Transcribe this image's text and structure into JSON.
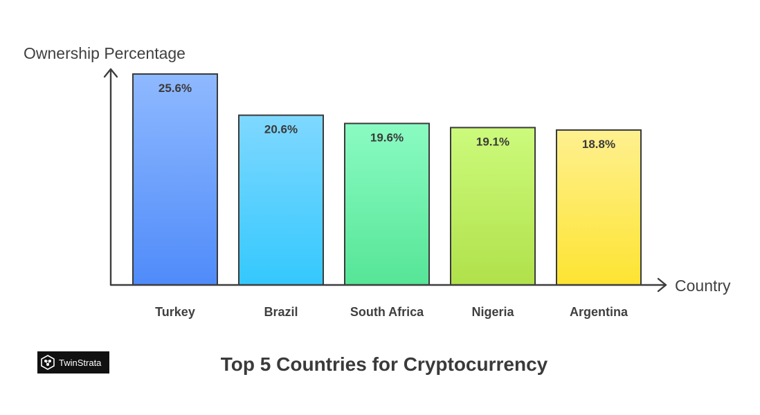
{
  "brand": {
    "name": "TwinStrata",
    "logo_icon": "twinstrata-logo-icon"
  },
  "chart_data": {
    "type": "bar",
    "title": "Top 5 Countries for Cryptocurrency",
    "xlabel": "Country",
    "ylabel": "Ownership Percentage",
    "categories": [
      "Turkey",
      "Brazil",
      "South Africa",
      "Nigeria",
      "Argentina"
    ],
    "values": [
      25.6,
      20.6,
      19.6,
      19.1,
      18.8
    ],
    "value_labels": [
      "25.6%",
      "20.6%",
      "19.6%",
      "19.1%",
      "18.8%"
    ],
    "ylim": [
      0,
      25.6
    ],
    "grid": false,
    "legend": "none",
    "colors": [
      {
        "top": "#8fb9ff",
        "bottom": "#4f8bf9"
      },
      {
        "top": "#7fd8ff",
        "bottom": "#34c8fd"
      },
      {
        "top": "#8afbc2",
        "bottom": "#56e597"
      },
      {
        "top": "#ccfa7c",
        "bottom": "#b0e14a"
      },
      {
        "top": "#fef08f",
        "bottom": "#fde432"
      }
    ]
  }
}
